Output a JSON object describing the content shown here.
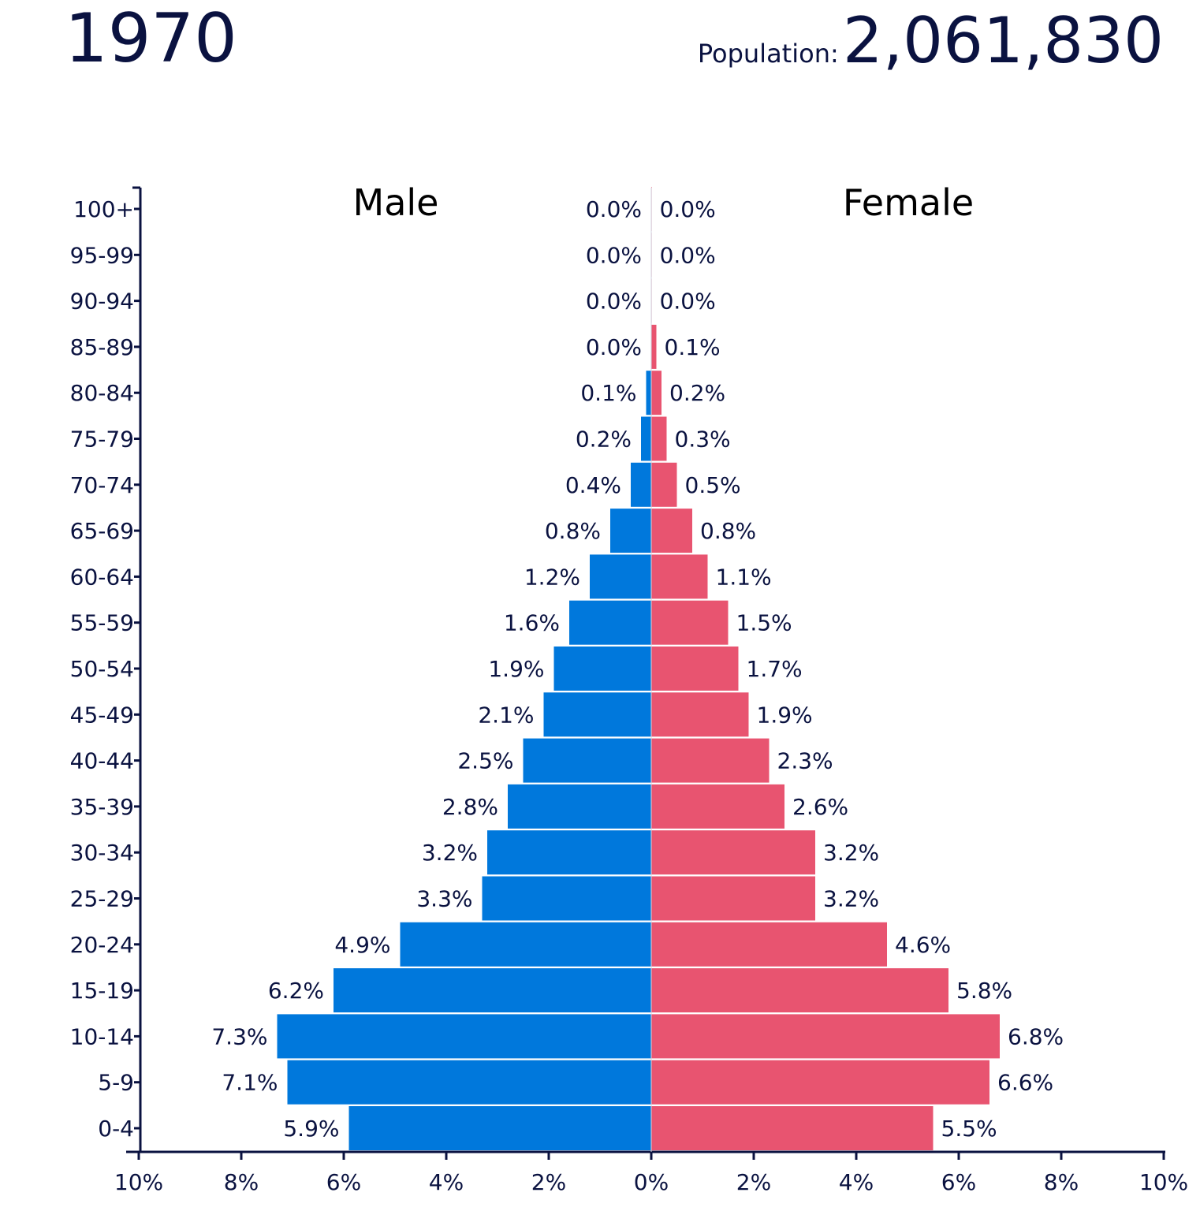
{
  "header": {
    "year": "1970",
    "population_label": "Population:",
    "population_value": "2,061,830"
  },
  "colors": {
    "male": "#0078dc",
    "female": "#e85470",
    "axis": "#0a1240",
    "text": "#0a1240"
  },
  "chart_data": {
    "type": "bar",
    "orientation": "horizontal",
    "title": "1970",
    "categories": [
      "0-4",
      "5-9",
      "10-14",
      "15-19",
      "20-24",
      "25-29",
      "30-34",
      "35-39",
      "40-44",
      "45-49",
      "50-54",
      "55-59",
      "60-64",
      "65-69",
      "70-74",
      "75-79",
      "80-84",
      "85-89",
      "90-94",
      "95-99",
      "100+"
    ],
    "series": [
      {
        "name": "Male",
        "values": [
          5.9,
          7.1,
          7.3,
          6.2,
          4.9,
          3.3,
          3.2,
          2.8,
          2.5,
          2.1,
          1.9,
          1.6,
          1.2,
          0.8,
          0.4,
          0.2,
          0.1,
          0.0,
          0.0,
          0.0,
          0.0
        ],
        "labels": [
          "5.9%",
          "7.1%",
          "7.3%",
          "6.2%",
          "4.9%",
          "3.3%",
          "3.2%",
          "2.8%",
          "2.5%",
          "2.1%",
          "1.9%",
          "1.6%",
          "1.2%",
          "0.8%",
          "0.4%",
          "0.2%",
          "0.1%",
          "0.0%",
          "0.0%",
          "0.0%",
          "0.0%"
        ]
      },
      {
        "name": "Female",
        "values": [
          5.5,
          6.6,
          6.8,
          5.8,
          4.6,
          3.2,
          3.2,
          2.6,
          2.3,
          1.9,
          1.7,
          1.5,
          1.1,
          0.8,
          0.5,
          0.3,
          0.2,
          0.1,
          0.0,
          0.0,
          0.0
        ],
        "labels": [
          "5.5%",
          "6.6%",
          "6.8%",
          "5.8%",
          "4.6%",
          "3.2%",
          "3.2%",
          "2.6%",
          "2.3%",
          "1.9%",
          "1.7%",
          "1.5%",
          "1.1%",
          "0.8%",
          "0.5%",
          "0.3%",
          "0.2%",
          "0.1%",
          "0.0%",
          "0.0%",
          "0.0%"
        ]
      }
    ],
    "xlim": [
      -10,
      10
    ],
    "x_ticks": [
      "10%",
      "8%",
      "6%",
      "4%",
      "2%",
      "0%",
      "2%",
      "4%",
      "6%",
      "8%",
      "10%"
    ],
    "grid": false,
    "legend": "top"
  }
}
